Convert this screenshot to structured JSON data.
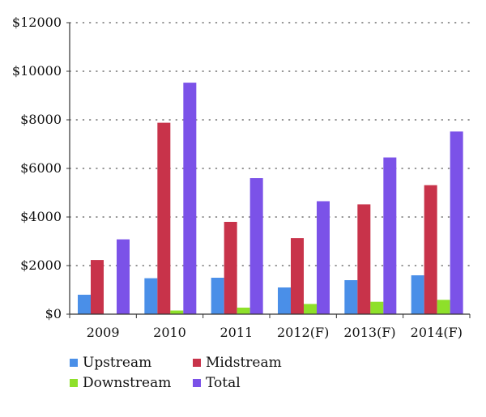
{
  "chart_data": {
    "type": "bar",
    "title": "",
    "xlabel": "",
    "ylabel": "",
    "categories": [
      "2009",
      "2010",
      "2011",
      "2012(F)",
      "2013(F)",
      "2014(F)"
    ],
    "ylim": [
      0,
      12000
    ],
    "yticks": [
      0,
      2000,
      4000,
      6000,
      8000,
      10000,
      12000
    ],
    "ytick_labels": [
      "$0",
      "$2000",
      "$4000",
      "$6000",
      "$8000",
      "$10000",
      "$12000"
    ],
    "grid": "horizontal dotted",
    "legend_position": "bottom-left",
    "series": [
      {
        "name": "Upstream",
        "color": "#4a8fe8",
        "values": [
          800,
          1480,
          1500,
          1100,
          1400,
          1600
        ]
      },
      {
        "name": "Midstream",
        "color": "#c8334a",
        "values": [
          2230,
          7880,
          3800,
          3130,
          4520,
          5310
        ]
      },
      {
        "name": "Downstream",
        "color": "#8ee02a",
        "values": [
          0,
          150,
          270,
          420,
          510,
          590
        ]
      },
      {
        "name": "Total",
        "color": "#7b52e8",
        "values": [
          3080,
          9530,
          5600,
          4650,
          6450,
          7520
        ]
      }
    ],
    "legend_order": [
      0,
      2,
      1,
      3
    ]
  }
}
